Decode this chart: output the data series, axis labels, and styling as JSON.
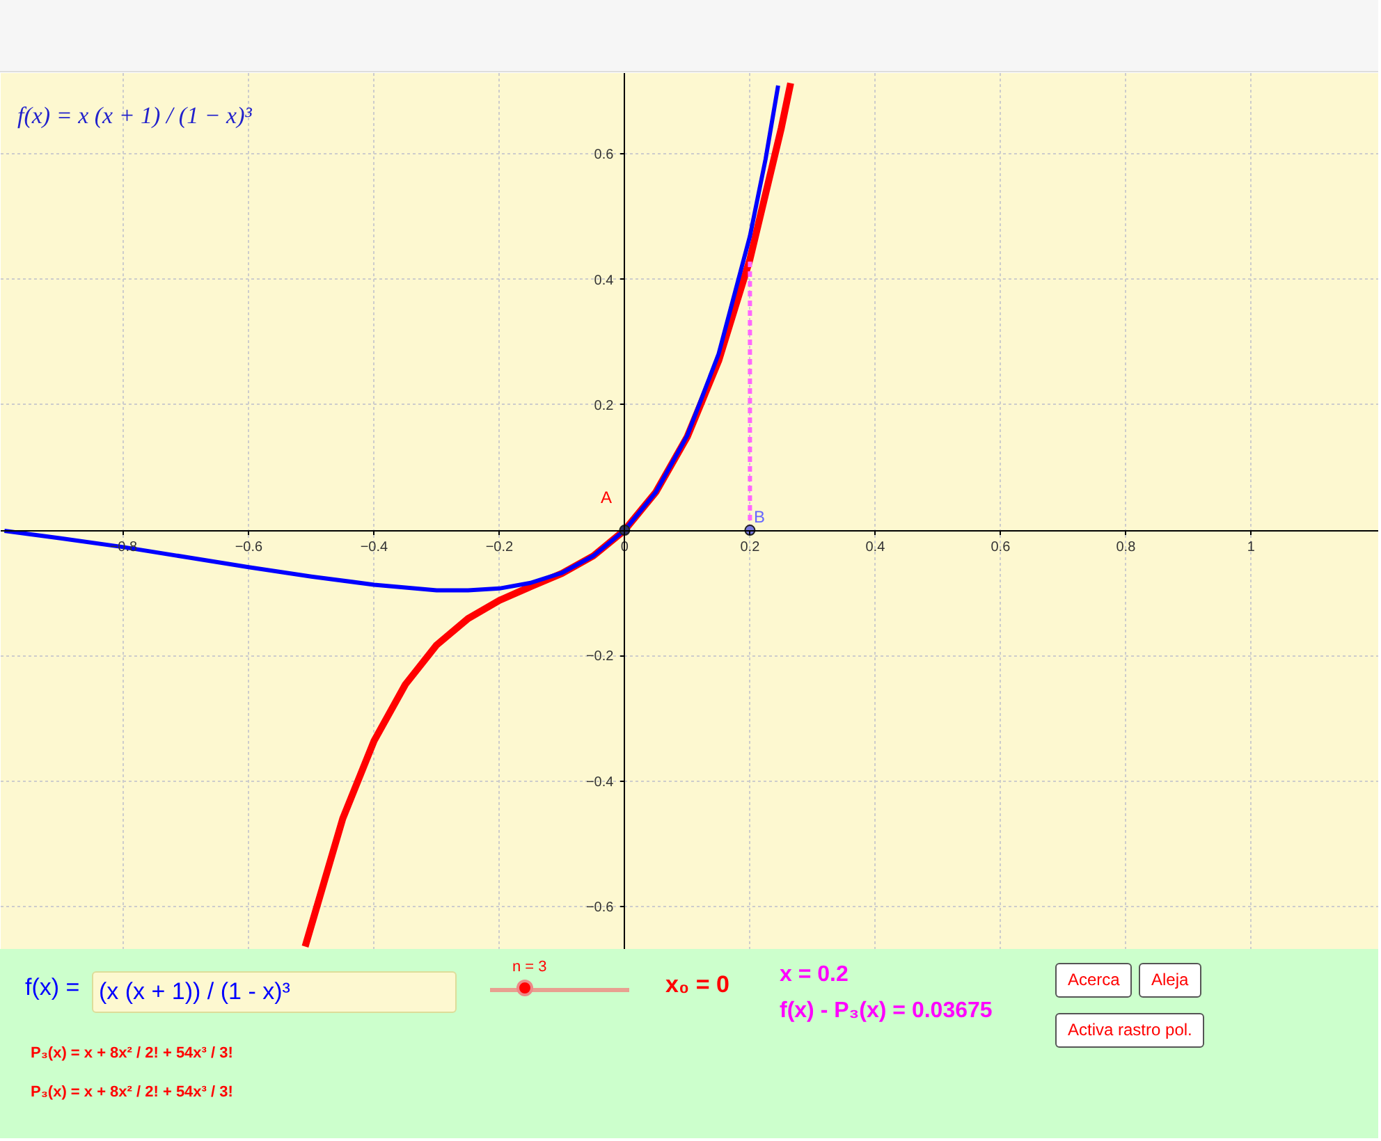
{
  "chart_data": {
    "type": "line",
    "xlim": [
      -0.996,
      1.204
    ],
    "ylim": [
      -0.669,
      0.729
    ],
    "xticks": [
      {
        "value": -0.8,
        "label": "−0.8"
      },
      {
        "value": -0.6,
        "label": "−0.6"
      },
      {
        "value": -0.4,
        "label": "−0.4"
      },
      {
        "value": -0.2,
        "label": "−0.2"
      },
      0,
      0.2,
      0.4,
      0.6,
      0.8,
      1
    ],
    "yticks": [
      {
        "value": -0.6,
        "label": "−0.6"
      },
      {
        "value": -0.4,
        "label": "−0.4"
      },
      {
        "value": -0.2,
        "label": "−0.2"
      },
      0.2,
      0.4,
      0.6
    ],
    "grid": true,
    "series": [
      {
        "color": "#ff0000",
        "x": [
          -0.51,
          -0.45,
          -0.4,
          -0.35,
          -0.3,
          -0.25,
          -0.2,
          -0.15,
          -0.1,
          -0.05,
          0,
          0.05,
          0.1,
          0.15,
          0.2,
          0.25,
          0.265
        ],
        "values": [
          -0.664,
          -0.46,
          -0.336,
          -0.246,
          -0.183,
          -0.141,
          -0.112,
          -0.09,
          -0.069,
          -0.041,
          0,
          0.061,
          0.149,
          0.27,
          0.432,
          0.641,
          0.713
        ]
      },
      {
        "color": "#0000ff",
        "x": [
          -0.99,
          -0.9,
          -0.8,
          -0.7,
          -0.6,
          -0.5,
          -0.4,
          -0.3,
          -0.25,
          -0.2,
          -0.15,
          -0.1,
          -0.05,
          0,
          0.05,
          0.1,
          0.15,
          0.2,
          0.225,
          0.245
        ],
        "values": [
          -0.001,
          -0.013,
          -0.027,
          -0.043,
          -0.059,
          -0.074,
          -0.087,
          -0.096,
          -0.096,
          -0.093,
          -0.084,
          -0.068,
          -0.041,
          0,
          0.061,
          0.151,
          0.281,
          0.469,
          0.592,
          0.709
        ]
      },
      {
        "color": "#ff66ff",
        "line_style": "dashed",
        "x": [
          0.2,
          0.2
        ],
        "values": [
          0,
          0.432
        ]
      },
      {
        "type": "scatter",
        "color": "#333366",
        "marker": "circle",
        "x": [
          0
        ],
        "values": [
          0
        ]
      },
      {
        "type": "scatter",
        "color": "#7777dd",
        "marker": "circle",
        "x": [
          0.2
        ],
        "values": [
          0
        ]
      }
    ],
    "annotations": [
      "A",
      "B",
      "f(x) = x (x + 1) / (1 − x)³",
      "f(x) =",
      "(x (x + 1)) / (1 - x)³",
      "n = 3",
      "x₀ = 0",
      "x = 0.2",
      "f(x) - P₃(x) = 0.03675",
      "Acerca",
      "Aleja",
      "Activa rastro pol.",
      "P₃(x) = x + 8x² / 2! + 54x³ / 3!",
      "P₃(x) = x + 8x² / 2! + 54x³ / 3!"
    ]
  }
}
